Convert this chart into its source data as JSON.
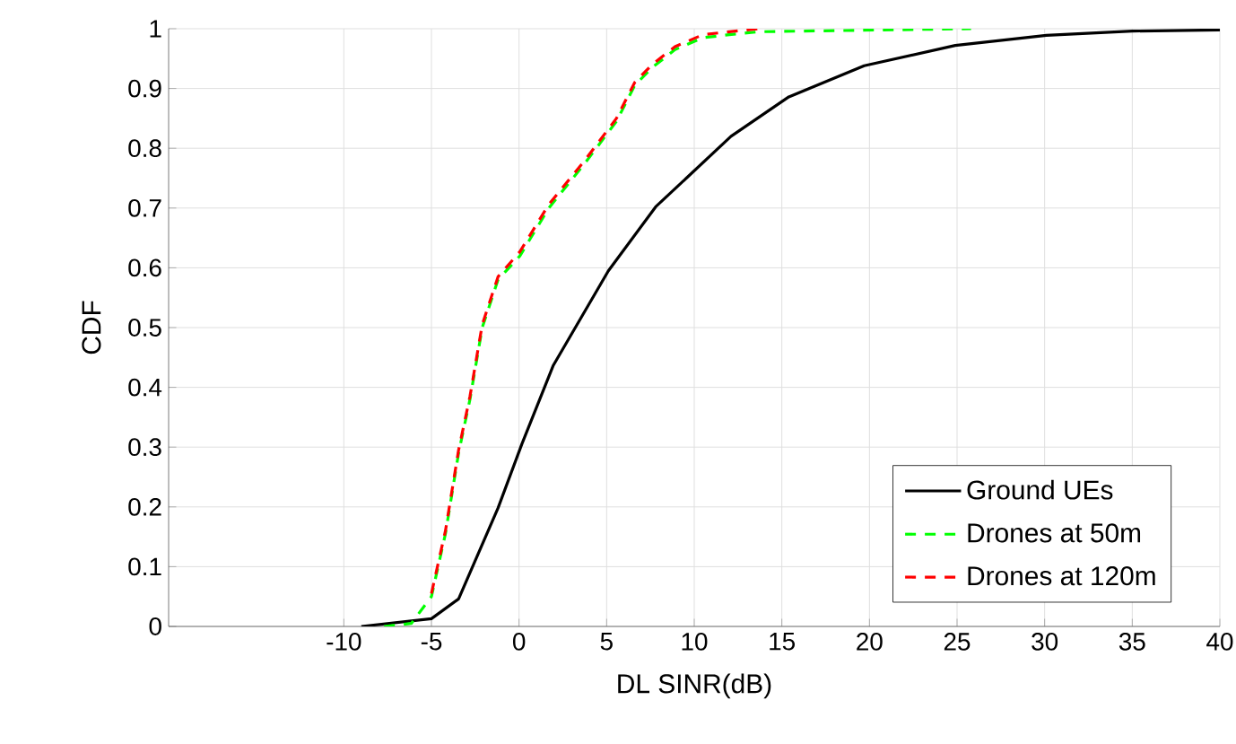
{
  "chart_data": {
    "type": "line",
    "xlabel": "DL SINR(dB)",
    "ylabel": "CDF",
    "xlim": [
      -20,
      40
    ],
    "xticks": [
      -10,
      -5,
      0,
      5,
      10,
      15,
      20,
      25,
      30,
      35,
      40
    ],
    "ylim": [
      0,
      1
    ],
    "yticks": [
      0,
      0.1,
      0.2,
      0.3,
      0.4,
      0.5,
      0.6,
      0.7,
      0.8,
      0.9,
      1
    ],
    "grid": true,
    "legend": "bottom right",
    "series": [
      {
        "name": "Ground UEs",
        "color": "#000000",
        "line_style": "solid",
        "x": [
          -9,
          -5,
          -3.45,
          -1.2,
          0.16,
          1.96,
          5.1,
          7.8,
          12.1,
          15.4,
          19.7,
          24.9,
          30.1,
          35,
          40
        ],
        "values": [
          0,
          0.013,
          0.046,
          0.198,
          0.305,
          0.437,
          0.595,
          0.702,
          0.82,
          0.886,
          0.938,
          0.972,
          0.989,
          0.996,
          0.998
        ]
      },
      {
        "name": "Drones at 50m",
        "color": "#00ff00",
        "line_style": "dashed",
        "x": [
          -7.7,
          -6.15,
          -5,
          -4.2,
          -3.45,
          -2.8,
          -2.1,
          -1.2,
          0.05,
          1.7,
          3.76,
          5.56,
          6.6,
          7.6,
          8.9,
          10.5,
          12,
          13.7,
          25.8
        ],
        "values": [
          0,
          0.005,
          0.05,
          0.155,
          0.29,
          0.38,
          0.5,
          0.58,
          0.62,
          0.7,
          0.775,
          0.845,
          0.905,
          0.935,
          0.965,
          0.985,
          0.99,
          0.995,
          1
        ]
      },
      {
        "name": "Drones at 120m",
        "color": "#ff0000",
        "line_style": "dashed",
        "x": [
          -5,
          -4.2,
          -3.45,
          -2.8,
          -2.1,
          -1.2,
          0.05,
          1.7,
          3.76,
          5.56,
          6.6,
          7.6,
          8.9,
          10.5,
          12,
          13.7
        ],
        "values": [
          0.055,
          0.16,
          0.295,
          0.385,
          0.505,
          0.585,
          0.627,
          0.706,
          0.78,
          0.85,
          0.91,
          0.94,
          0.97,
          0.99,
          0.995,
          1
        ]
      }
    ]
  }
}
